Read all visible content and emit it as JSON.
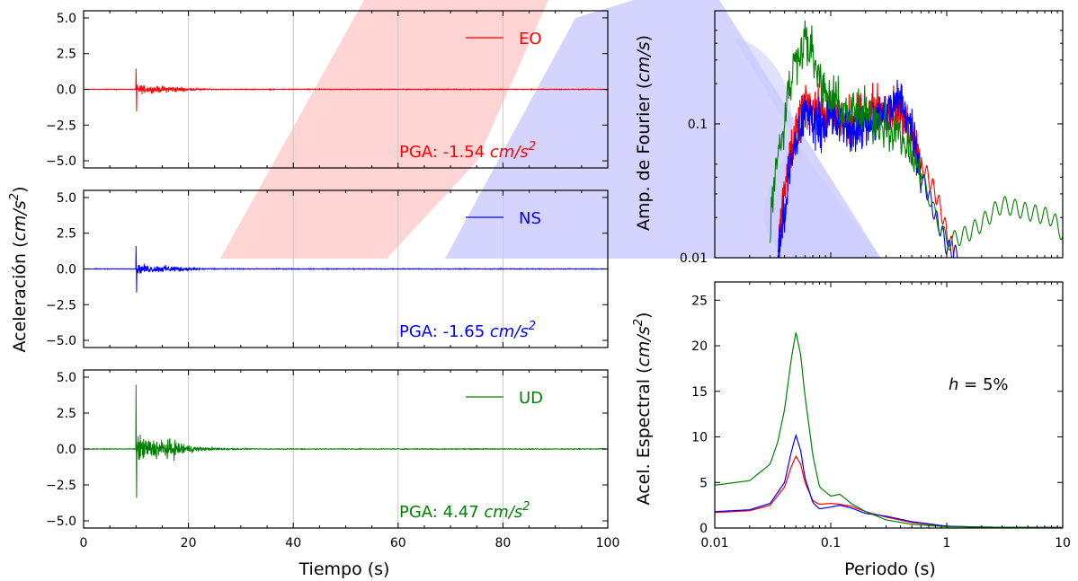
{
  "colors": {
    "EO": "#ff0000",
    "NS": "#0000ff",
    "UD": "#008000",
    "watermark_red": "#ffcccc",
    "watermark_blue": "#ccccff"
  },
  "chart_data": [
    {
      "type": "line",
      "id": "time-histories",
      "xlabel": "Tiempo (s)",
      "ylabel": "Aceleración (cm/s²)",
      "xlim": [
        0,
        100
      ],
      "ylim": [
        -5.5,
        5.5
      ],
      "xticks": [
        "0",
        "20",
        "40",
        "60",
        "80",
        "100"
      ],
      "yticks": [
        "5.0",
        "2.5",
        "0.0",
        "−2.5",
        "−5.0"
      ],
      "grid": "vertical",
      "panels": [
        {
          "component": "EO",
          "legend": "EO",
          "pga_label": "PGA: -1.54",
          "pga_unit": "cm/s²",
          "pga": -1.54,
          "onset_s": 10,
          "peak_pos": 1.45,
          "peak_neg": -1.54,
          "strong_motion_end_s": 25
        },
        {
          "component": "NS",
          "legend": "NS",
          "pga_label": "PGA: -1.65",
          "pga_unit": "cm/s²",
          "pga": -1.65,
          "onset_s": 10,
          "peak_pos": 1.6,
          "peak_neg": -1.65,
          "strong_motion_end_s": 25
        },
        {
          "component": "UD",
          "legend": "UD",
          "pga_label": "PGA: 4.47",
          "pga_unit": "cm/s²",
          "pga": 4.47,
          "onset_s": 10,
          "peak_pos": 4.47,
          "peak_neg": -3.4,
          "strong_motion_end_s": 30
        }
      ]
    },
    {
      "type": "line",
      "id": "fourier-spectrum",
      "ylabel": "Amp. de Fourier (cm/s)",
      "xscale": "log",
      "yscale": "log",
      "xlim": [
        0.01,
        10
      ],
      "ylim": [
        0.01,
        0.7
      ],
      "yticks": [
        "0.1",
        "0.01"
      ],
      "series": [
        {
          "name": "EO",
          "x": [
            0.035,
            0.04,
            0.05,
            0.06,
            0.08,
            0.1,
            0.15,
            0.2,
            0.3,
            0.4,
            0.5,
            0.6,
            0.8,
            1.0,
            1.2
          ],
          "y": [
            0.01,
            0.03,
            0.08,
            0.15,
            0.12,
            0.12,
            0.1,
            0.12,
            0.13,
            0.12,
            0.08,
            0.05,
            0.03,
            0.015,
            0.01
          ]
        },
        {
          "name": "NS",
          "x": [
            0.035,
            0.04,
            0.05,
            0.06,
            0.08,
            0.1,
            0.15,
            0.2,
            0.3,
            0.4,
            0.5,
            0.6,
            0.8,
            1.0,
            1.3
          ],
          "y": [
            0.01,
            0.02,
            0.07,
            0.12,
            0.1,
            0.11,
            0.09,
            0.1,
            0.12,
            0.15,
            0.09,
            0.04,
            0.02,
            0.012,
            0.01
          ]
        },
        {
          "name": "UD",
          "x": [
            0.03,
            0.04,
            0.05,
            0.06,
            0.08,
            0.1,
            0.15,
            0.2,
            0.3,
            0.4,
            0.6,
            0.8,
            1.0,
            1.5,
            2.0,
            3.0,
            5.0,
            8.0,
            10.0
          ],
          "y": [
            0.015,
            0.1,
            0.3,
            0.45,
            0.2,
            0.15,
            0.12,
            0.12,
            0.1,
            0.08,
            0.04,
            0.02,
            0.013,
            0.015,
            0.018,
            0.025,
            0.022,
            0.02,
            0.015
          ]
        }
      ]
    },
    {
      "type": "line",
      "id": "response-spectrum",
      "xlabel": "Periodo (s)",
      "ylabel": "Acel. Espectral (cm/s²)",
      "xscale": "log",
      "xlim": [
        0.01,
        10
      ],
      "ylim": [
        0,
        27
      ],
      "xticks": [
        "0.01",
        "0.1",
        "1",
        "10"
      ],
      "yticks": [
        "0",
        "5",
        "10",
        "15",
        "20",
        "25"
      ],
      "annotation": "h = 5%",
      "series": [
        {
          "name": "EO",
          "x": [
            0.01,
            0.02,
            0.03,
            0.04,
            0.045,
            0.05,
            0.055,
            0.06,
            0.07,
            0.08,
            0.1,
            0.12,
            0.15,
            0.2,
            0.3,
            0.5,
            1.0,
            2.0,
            10.0
          ],
          "y": [
            1.7,
            1.9,
            2.5,
            4.5,
            6.5,
            7.9,
            7.0,
            5.0,
            3.0,
            2.6,
            2.7,
            2.6,
            2.4,
            1.8,
            1.2,
            0.6,
            0.2,
            0.1,
            0.05
          ]
        },
        {
          "name": "NS",
          "x": [
            0.01,
            0.02,
            0.03,
            0.04,
            0.045,
            0.05,
            0.055,
            0.06,
            0.07,
            0.08,
            0.1,
            0.12,
            0.15,
            0.2,
            0.3,
            0.5,
            1.0,
            2.0,
            10.0
          ],
          "y": [
            1.8,
            2.0,
            2.7,
            5.0,
            8.0,
            10.2,
            8.5,
            5.5,
            2.8,
            2.1,
            2.3,
            2.5,
            2.2,
            1.6,
            1.3,
            0.7,
            0.2,
            0.1,
            0.05
          ]
        },
        {
          "name": "UD",
          "x": [
            0.01,
            0.02,
            0.03,
            0.035,
            0.04,
            0.045,
            0.05,
            0.055,
            0.06,
            0.07,
            0.08,
            0.1,
            0.12,
            0.15,
            0.2,
            0.3,
            0.5,
            1.0,
            2.0,
            10.0
          ],
          "y": [
            4.7,
            5.2,
            7.0,
            9.5,
            13.0,
            18.0,
            21.5,
            19.0,
            14.5,
            8.0,
            4.5,
            3.5,
            3.7,
            2.7,
            1.8,
            0.9,
            0.4,
            0.15,
            0.1,
            0.05
          ]
        }
      ]
    }
  ]
}
